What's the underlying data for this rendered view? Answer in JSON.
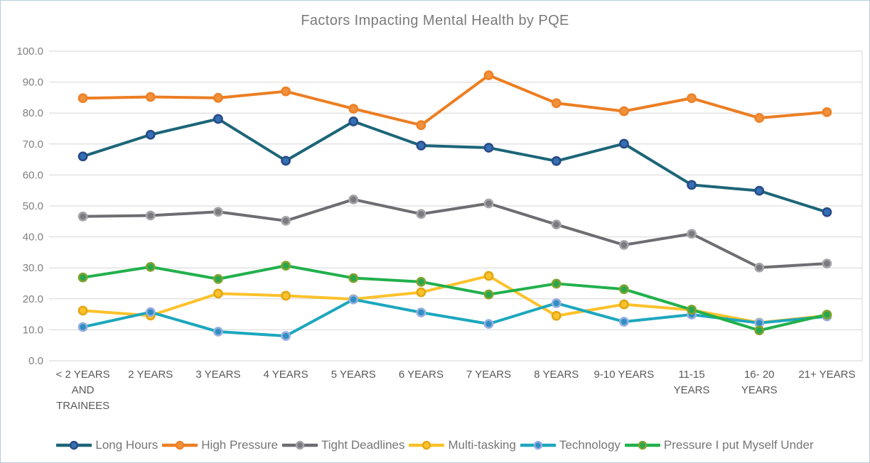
{
  "window": {
    "background": "#ffffff",
    "border_color": "#b6cedd"
  },
  "chart_data": {
    "type": "line",
    "title": "Factors Impacting Mental Health by PQE",
    "xlabel": "",
    "ylabel": "",
    "ylim": [
      0,
      100
    ],
    "grid": "horizontal",
    "plot_border_right": true,
    "legend_position": "bottom",
    "y_ticks": [
      {
        "value": 0,
        "label": "0.0"
      },
      {
        "value": 10,
        "label": "10.0"
      },
      {
        "value": 20,
        "label": "20.0"
      },
      {
        "value": 30,
        "label": "30.0"
      },
      {
        "value": 40,
        "label": "40.0"
      },
      {
        "value": 50,
        "label": "50.0"
      },
      {
        "value": 60,
        "label": "60.0"
      },
      {
        "value": 70,
        "label": "70.0"
      },
      {
        "value": 80,
        "label": "80.0"
      },
      {
        "value": 90,
        "label": "90.0"
      },
      {
        "value": 100,
        "label": "100.0"
      }
    ],
    "categories": [
      {
        "label": "< 2 YEARS AND TRAINEES",
        "lines": [
          "< 2 YEARS",
          "AND",
          "TRAINEES"
        ]
      },
      {
        "label": "2 YEARS",
        "lines": [
          "2 YEARS"
        ]
      },
      {
        "label": "3 YEARS",
        "lines": [
          "3 YEARS"
        ]
      },
      {
        "label": "4 YEARS",
        "lines": [
          "4 YEARS"
        ]
      },
      {
        "label": "5 YEARS",
        "lines": [
          "5 YEARS"
        ]
      },
      {
        "label": "6 YEARS",
        "lines": [
          "6 YEARS"
        ]
      },
      {
        "label": "7 YEARS",
        "lines": [
          "7 YEARS"
        ]
      },
      {
        "label": "8 YEARS",
        "lines": [
          "8 YEARS"
        ]
      },
      {
        "label": "9-10 YEARS",
        "lines": [
          "9-10 YEARS"
        ]
      },
      {
        "label": "11-15 YEARS",
        "lines": [
          "11-15",
          "YEARS"
        ]
      },
      {
        "label": "16- 20 YEARS",
        "lines": [
          "16- 20",
          "YEARS"
        ]
      },
      {
        "label": "21+ YEARS",
        "lines": [
          "21+ YEARS"
        ]
      }
    ],
    "series": [
      {
        "name": "Long Hours",
        "line_color": "#1c6578",
        "marker_fill": "#3470b5",
        "marker_ring": "#2a4a86",
        "values": [
          66.0,
          73.0,
          78.1,
          64.6,
          77.3,
          69.5,
          68.8,
          64.5,
          70.1,
          56.8,
          54.9,
          48.0
        ]
      },
      {
        "name": "High Pressure",
        "line_color": "#ec7e23",
        "marker_fill": "#f0913c",
        "marker_ring": "#ee8127",
        "values": [
          84.8,
          85.2,
          84.9,
          87.0,
          81.4,
          76.1,
          92.2,
          83.2,
          80.6,
          84.8,
          78.4,
          80.3
        ]
      },
      {
        "name": "Tight Deadlines",
        "line_color": "#6d6d72",
        "marker_fill": "#7a7a7f",
        "marker_ring": "#a5a5aa",
        "values": [
          46.6,
          46.9,
          48.1,
          45.2,
          52.1,
          47.4,
          50.8,
          44.0,
          37.4,
          41.0,
          30.1,
          31.4
        ]
      },
      {
        "name": "Multi-tasking",
        "line_color": "#fcc22c",
        "marker_fill": "#fcc22c",
        "marker_ring": "#e2a714",
        "values": [
          16.2,
          14.6,
          21.7,
          21.0,
          19.9,
          22.1,
          27.4,
          14.5,
          18.2,
          16.4,
          12.3,
          14.6
        ]
      },
      {
        "name": "Technology",
        "line_color": "#1ca7bd",
        "marker_fill": "#2f8ec4",
        "marker_ring": "#98aede",
        "values": [
          10.9,
          15.7,
          9.4,
          8.0,
          19.8,
          15.6,
          11.9,
          18.6,
          12.6,
          14.9,
          12.2,
          14.3
        ]
      },
      {
        "name": "Pressure I put Myself Under",
        "line_color": "#22b04c",
        "marker_fill": "#27a84e",
        "marker_ring": "#81a32e",
        "values": [
          26.9,
          30.3,
          26.4,
          30.7,
          26.7,
          25.5,
          21.4,
          24.9,
          23.1,
          16.5,
          9.8,
          14.9
        ]
      }
    ],
    "style": {
      "gridline_color": "#d6d6d6",
      "y_tick_color": "#7f7f7f",
      "x_tick_color": "#595959",
      "title_color": "#7a7a7a",
      "legend_text_color": "#767676"
    }
  }
}
